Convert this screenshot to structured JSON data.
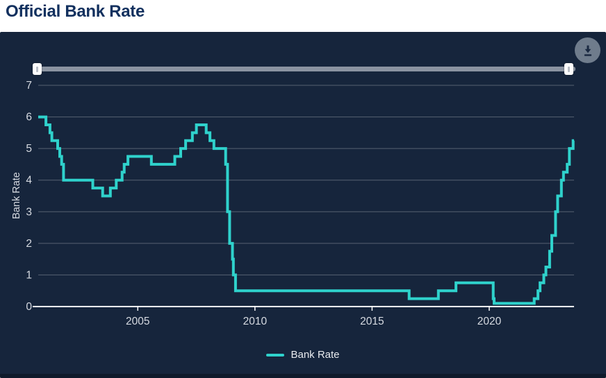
{
  "page": {
    "title": "Official Bank Rate"
  },
  "colors": {
    "accent_teal": "#2FD2CC",
    "panel_background": "#16253C",
    "title_navy": "#12305E",
    "gridline": "rgba(255,255,255,0.28)",
    "axis_line": "#FFFFFF",
    "tick_label": "#D6DAE1",
    "slider_track": "#8A93A1",
    "download_button_bg": "#6F7C8C",
    "download_button_icon": "#1B2A42"
  },
  "chart_data": {
    "type": "line",
    "line_style": "step-after",
    "title": "Official Bank Rate",
    "xlabel": "",
    "ylabel": "Bank Rate",
    "xlim": [
      2000.75,
      2023.62
    ],
    "ylim": [
      0,
      7
    ],
    "x_ticks": [
      2005,
      2010,
      2015,
      2020
    ],
    "y_ticks": [
      0,
      1,
      2,
      3,
      4,
      5,
      6,
      7
    ],
    "grid": "horizontal",
    "legend_position": "bottom",
    "series": [
      {
        "name": "Bank Rate",
        "color": "#2FD2CC",
        "points": [
          [
            2000.75,
            6.0
          ],
          [
            2001.08,
            5.75
          ],
          [
            2001.25,
            5.5
          ],
          [
            2001.33,
            5.25
          ],
          [
            2001.58,
            5.0
          ],
          [
            2001.67,
            4.75
          ],
          [
            2001.75,
            4.5
          ],
          [
            2001.83,
            4.0
          ],
          [
            2003.08,
            3.75
          ],
          [
            2003.5,
            3.5
          ],
          [
            2003.83,
            3.75
          ],
          [
            2004.08,
            4.0
          ],
          [
            2004.33,
            4.25
          ],
          [
            2004.42,
            4.5
          ],
          [
            2004.58,
            4.75
          ],
          [
            2005.58,
            4.5
          ],
          [
            2006.58,
            4.75
          ],
          [
            2006.83,
            5.0
          ],
          [
            2007.04,
            5.25
          ],
          [
            2007.33,
            5.5
          ],
          [
            2007.5,
            5.75
          ],
          [
            2007.92,
            5.5
          ],
          [
            2008.08,
            5.25
          ],
          [
            2008.25,
            5.0
          ],
          [
            2008.75,
            4.5
          ],
          [
            2008.83,
            3.0
          ],
          [
            2008.92,
            2.0
          ],
          [
            2009.04,
            1.5
          ],
          [
            2009.08,
            1.0
          ],
          [
            2009.17,
            0.5
          ],
          [
            2016.58,
            0.25
          ],
          [
            2017.83,
            0.5
          ],
          [
            2018.58,
            0.75
          ],
          [
            2020.17,
            0.25
          ],
          [
            2020.21,
            0.1
          ],
          [
            2021.92,
            0.25
          ],
          [
            2022.08,
            0.5
          ],
          [
            2022.17,
            0.75
          ],
          [
            2022.33,
            1.0
          ],
          [
            2022.42,
            1.25
          ],
          [
            2022.58,
            1.75
          ],
          [
            2022.67,
            2.25
          ],
          [
            2022.83,
            3.0
          ],
          [
            2022.92,
            3.5
          ],
          [
            2023.08,
            4.0
          ],
          [
            2023.17,
            4.25
          ],
          [
            2023.33,
            4.5
          ],
          [
            2023.42,
            5.0
          ],
          [
            2023.58,
            5.25
          ]
        ]
      }
    ]
  }
}
